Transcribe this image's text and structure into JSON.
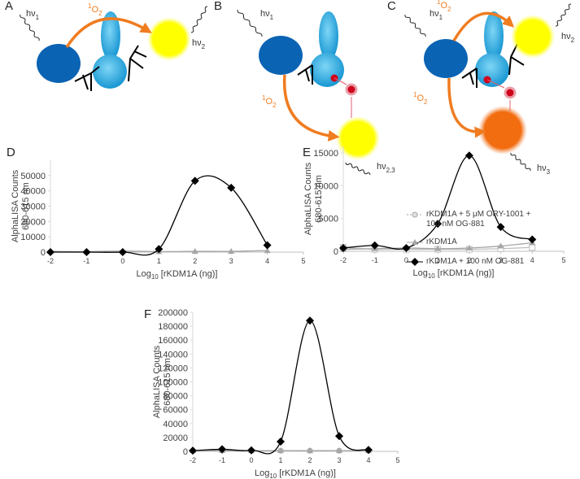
{
  "diagrams": [
    {
      "label": "A",
      "texts": [
        {
          "text": "hν",
          "sub": "1"
        },
        {
          "sup": "1",
          "text": "O",
          "sub": "2"
        },
        {
          "text": "hν",
          "sub": "2"
        }
      ]
    },
    {
      "label": "B",
      "texts": [
        {
          "text": "hν",
          "sub": "1"
        },
        {
          "sup": "1",
          "text": "O",
          "sub": "2"
        },
        {
          "text": "hν",
          "sub": "2,3"
        }
      ]
    },
    {
      "label": "C",
      "texts": [
        {
          "text": "hν",
          "sub": "1"
        },
        {
          "sup": "1",
          "text": "O",
          "sub": "2"
        },
        {
          "text": "hν",
          "sub": "2"
        },
        {
          "sup": "1",
          "text": "O",
          "sub": "2"
        },
        {
          "text": "hν",
          "sub": "3"
        }
      ]
    }
  ],
  "chart_data": [
    {
      "type": "line",
      "label": "D",
      "y_label": [
        "AlphaLISA Counts",
        "680-615 nm"
      ],
      "x_label": {
        "text": "Log",
        "sub": "10",
        "rest": " [rKDM1A (ng)]"
      },
      "x": [
        -2,
        -1,
        0,
        1,
        2,
        3,
        4
      ],
      "xlim": [
        -2,
        5
      ],
      "xticks": [
        -2,
        -1,
        0,
        1,
        2,
        3,
        4,
        5
      ],
      "ylim": [
        0,
        60000
      ],
      "yticks": [
        0,
        10000,
        20000,
        30000,
        40000,
        50000
      ],
      "series": [
        {
          "color": "#a6a6a6",
          "marker": "triangle",
          "values": [
            500,
            300,
            700,
            300,
            500,
            500,
            1000
          ]
        },
        {
          "color": "#000000",
          "marker": "diamond",
          "values": [
            0,
            0,
            0,
            2000,
            46500,
            42000,
            4500
          ]
        }
      ]
    },
    {
      "type": "line",
      "label": "E",
      "y_label": [
        "AlphaLISA Counts",
        "680-615 nm"
      ],
      "x_label": {
        "text": "Log",
        "sub": "10",
        "rest": " [rKDM1A (ng)]"
      },
      "x": [
        -2,
        -1,
        0,
        1,
        2,
        3,
        4
      ],
      "xlim": [
        -2,
        5
      ],
      "xticks": [
        -2,
        -1,
        0,
        1,
        2,
        3,
        4,
        5
      ],
      "ylim": [
        0,
        16000
      ],
      "yticks": [
        0,
        5000,
        10000,
        15000
      ],
      "series": [
        {
          "color": "#bfbfbf",
          "marker": "square",
          "values": [
            600,
            300,
            300,
            300,
            300,
            400,
            600
          ]
        },
        {
          "color": "#a6a6a6",
          "marker": "triangle",
          "values": [
            300,
            400,
            500,
            400,
            500,
            800,
            1300
          ]
        },
        {
          "color": "#000000",
          "marker": "diamond",
          "values": [
            500,
            900,
            500,
            4200,
            14600,
            3700,
            1800
          ]
        }
      ]
    },
    {
      "type": "line",
      "label": "F",
      "y_label": [
        "AlphaLISA Counts",
        "680-615 nm"
      ],
      "x_label": {
        "text": "Log",
        "sub": "10",
        "rest": " [rKDM1A (ng)]"
      },
      "x": [
        -2,
        -1,
        0,
        1,
        2,
        3,
        4
      ],
      "xlim": [
        -2,
        5
      ],
      "xticks": [
        -2,
        -1,
        0,
        1,
        2,
        3,
        4,
        5
      ],
      "ylim": [
        0,
        200000
      ],
      "yticks": [
        0,
        20000,
        40000,
        60000,
        80000,
        100000,
        120000,
        140000,
        160000,
        180000,
        200000
      ],
      "legend": "right",
      "series": [
        {
          "name": "rKDM1A + 5 μM ORY-1001 + 100 nM OG-881",
          "color": "#a6a6a6",
          "marker": "circle",
          "line_style": "dotted",
          "values": [
            1000,
            1000,
            1000,
            1000,
            1000,
            1000,
            1000
          ]
        },
        {
          "name": "rKDM1A",
          "color": "#a6a6a6",
          "marker": "triangle",
          "values": [
            1000,
            1200,
            1000,
            1000,
            1000,
            1000,
            1000
          ]
        },
        {
          "name": "rKDM1A + 100 nM OG-881",
          "color": "#000000",
          "marker": "diamond",
          "values": [
            1000,
            3000,
            1500,
            14000,
            188000,
            22000,
            2000
          ]
        }
      ]
    }
  ]
}
